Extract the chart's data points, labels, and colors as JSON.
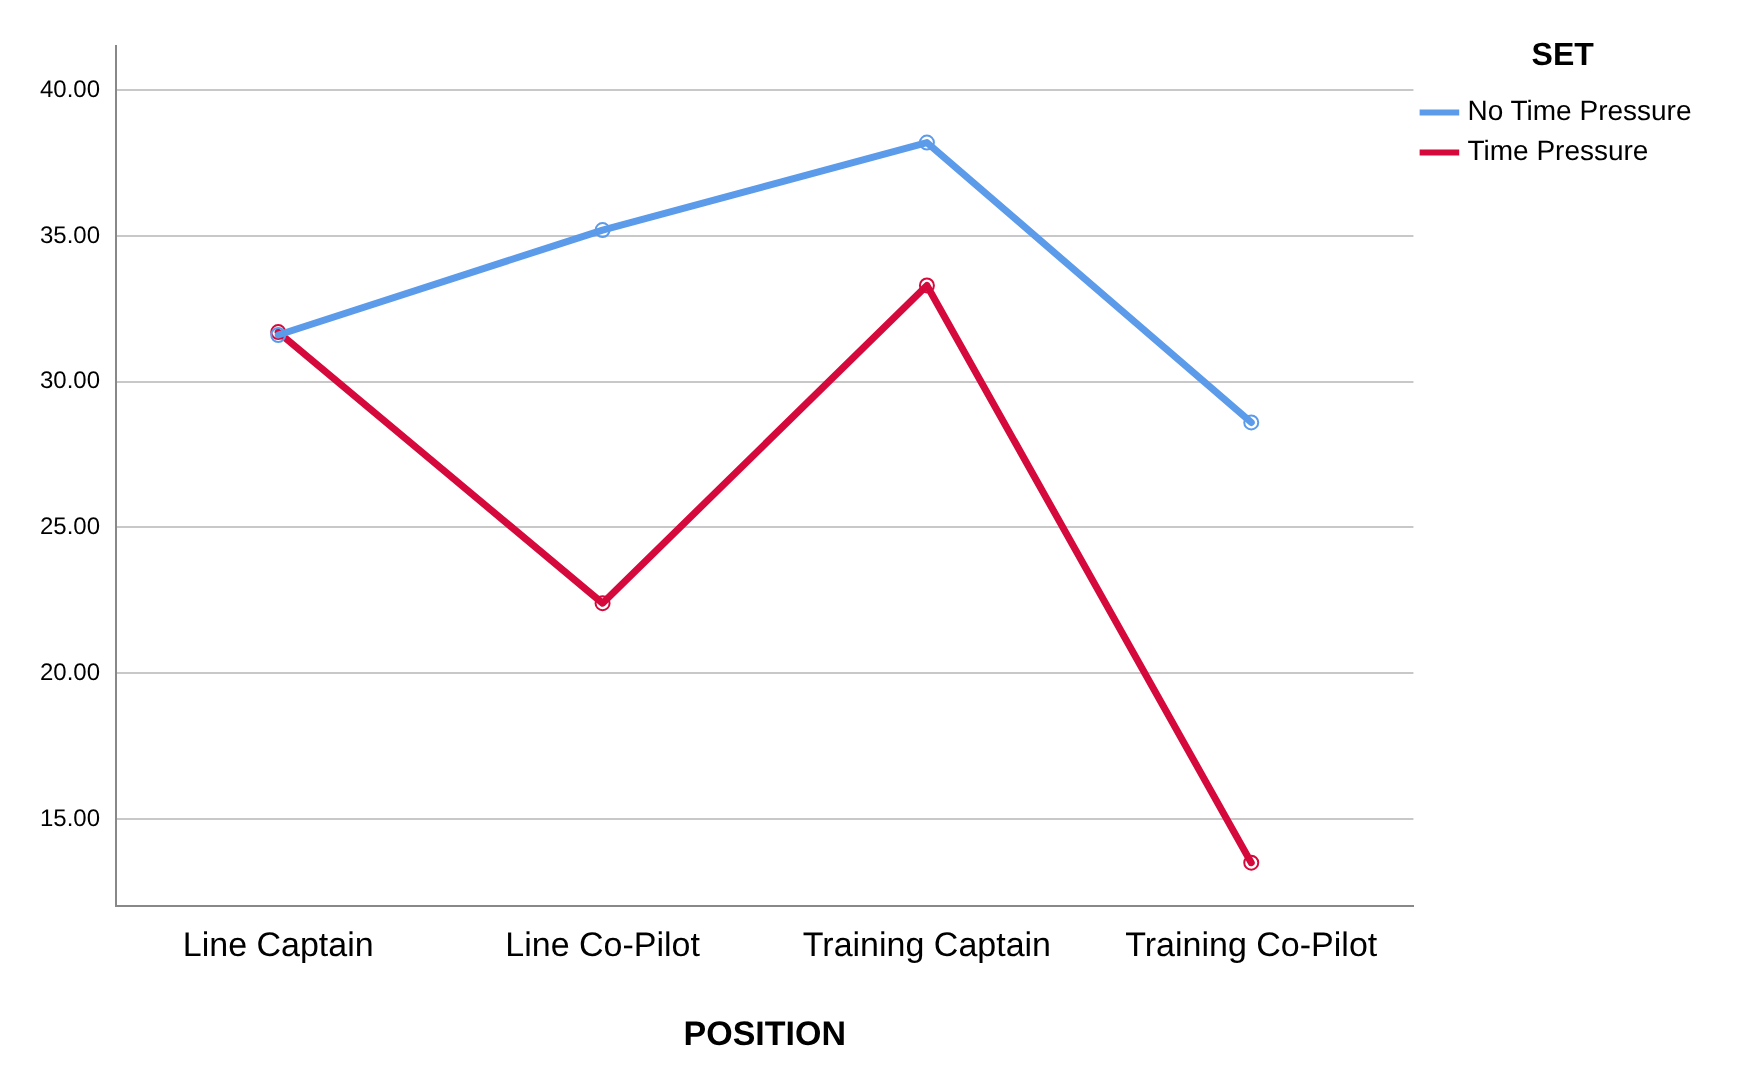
{
  "chart_data": {
    "type": "line",
    "xlabel": "POSITION",
    "legend_title": "SET",
    "legend": "top right",
    "grid": "y",
    "marker": "circle",
    "line_style": "solid",
    "categories": [
      "Line Captain",
      "Line Co-Pilot",
      "Training Captain",
      "Training Co-Pilot"
    ],
    "series": [
      {
        "name": "No Time Pressure",
        "color": "#5b9bea",
        "values": [
          31.6,
          35.2,
          38.2,
          28.6
        ]
      },
      {
        "name": "Time Pressure",
        "color": "#d5093b",
        "values": [
          31.7,
          22.4,
          33.3,
          13.5
        ]
      }
    ],
    "ylim": [
      12,
      41.5
    ],
    "yticks": [
      {
        "value": 15,
        "label": "15.00"
      },
      {
        "value": 20,
        "label": "20.00"
      },
      {
        "value": 25,
        "label": "25.00"
      },
      {
        "value": 30,
        "label": "30.00"
      },
      {
        "value": 35,
        "label": "35.00"
      },
      {
        "value": 40,
        "label": "40.00"
      }
    ]
  }
}
